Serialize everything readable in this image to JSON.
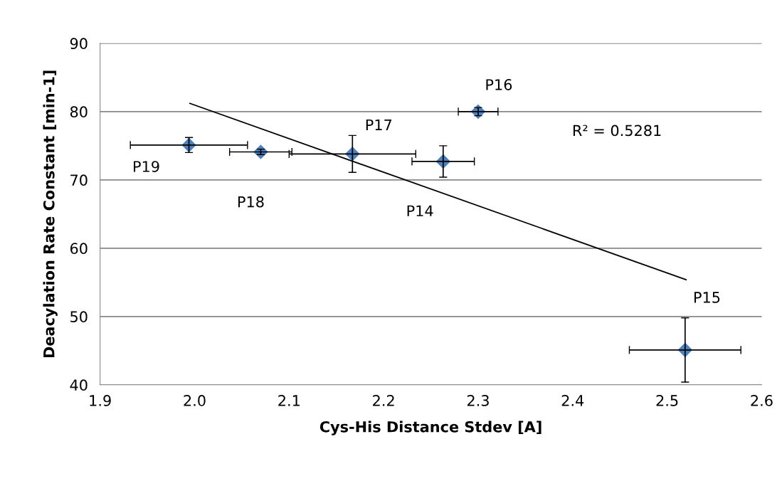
{
  "chart_data": {
    "type": "scatter",
    "xlabel": "Cys-His Distance Stdev [A]",
    "ylabel": "Deacylation Rate Constant [min-1]",
    "xlim": [
      1.9,
      2.6
    ],
    "xticks": [
      1.9,
      {
        "value": 2,
        "label": "2.0"
      },
      2.1,
      2.2,
      2.3,
      2.4,
      2.5,
      2.6
    ],
    "ylim": [
      40,
      90
    ],
    "yticks": [
      40,
      50,
      60,
      70,
      80,
      90
    ],
    "grid": "y",
    "marker": "diamond",
    "legend": false,
    "series": [
      {
        "color": "#4f81bd",
        "x": [
          1.994,
          2.07,
          2.167,
          2.263,
          2.3,
          2.519
        ],
        "values": [
          75.1,
          74.1,
          73.8,
          72.7,
          80.0,
          45.1
        ],
        "errors": [
          1.1,
          0.4,
          2.7,
          2.3,
          0.6,
          4.7
        ],
        "xerrors": [
          0.062,
          0.033,
          0.067,
          0.033,
          0.021,
          0.059
        ]
      },
      {
        "type": "line",
        "color": "#000000",
        "marker": "none",
        "x": [
          1.995,
          2.52
        ],
        "values": [
          81.2,
          55.4
        ]
      }
    ],
    "annotations": [
      {
        "text": "P19",
        "x": 1.994,
        "y": 75.1
      },
      {
        "text": "P18",
        "x": 2.07,
        "y": 74.1
      },
      {
        "text": "P17",
        "x": 2.167,
        "y": 73.8
      },
      "P14",
      {
        "text": "P16",
        "x": 2.3,
        "y": 80.0
      },
      "P15",
      "R² = 0.5281"
    ]
  }
}
